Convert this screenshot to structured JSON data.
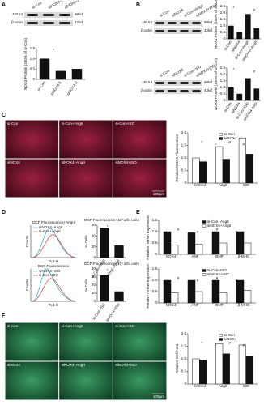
{
  "A": {
    "label": "A",
    "blot": {
      "lanes": [
        "si-Con",
        "siNOX4-1",
        "siNOX4-2"
      ],
      "bands": [
        "NOX4",
        "β-actin"
      ],
      "sizes": [
        "68kd",
        "42kd"
      ]
    },
    "chart": {
      "ylabel": "NOX4 Protein (100% of si-Con)",
      "categories": [
        "si-Con",
        "siNOX4-1",
        "siNOX4-2"
      ],
      "values": [
        1.0,
        0.4,
        0.5
      ],
      "color": "#111111",
      "ylim": [
        0,
        1.5
      ],
      "yticks": [
        0,
        0.5,
        {
          "value": 1,
          "label": "1.0"
        },
        1.5
      ],
      "annotations": [
        "*"
      ]
    }
  },
  "B": {
    "label": "B",
    "blot1": {
      "lanes": [
        "si-Con",
        "siNOX4",
        "si-Con+AngII",
        "siNOX4+AngII"
      ],
      "bands": [
        "NOX4",
        "β-actin"
      ],
      "sizes": [
        "68kd",
        "42kd"
      ]
    },
    "chart1": {
      "ylabel": "NOX4 Protein (100% of si-Con)",
      "categories": [
        "si-Con",
        "siNOX4",
        "si-Con+AngII",
        "siNOX4+AngII"
      ],
      "values": [
        1.0,
        0.5,
        1.9,
        0.8
      ],
      "color": "#111111",
      "ylim": [
        0,
        2.5
      ],
      "yticks": [
        0,
        0.5,
        {
          "value": 1,
          "label": "1.0"
        },
        1.5,
        {
          "value": 2,
          "label": "2.0"
        },
        2.5
      ],
      "annotations": [
        "*",
        "#"
      ]
    },
    "blot2": {
      "lanes": [
        "si-Con",
        "siNOX4",
        "si-Con+ISO",
        "siNOX4+ISO"
      ],
      "bands": [
        "NOX4",
        "β-actin"
      ],
      "sizes": [
        "68kd",
        "42kd"
      ]
    },
    "chart2": {
      "ylabel": "NOX4 Protein (100% of si-Con)",
      "categories": [
        "si-Con",
        "siNOX4",
        "si-Con+ISO",
        "siNOX4+ISO"
      ],
      "values": [
        1.0,
        0.5,
        1.7,
        0.9
      ],
      "color": "#111111",
      "ylim": [
        0,
        2.5
      ],
      "yticks": [
        0,
        0.5,
        {
          "value": 1,
          "label": "1.0"
        },
        1.5,
        {
          "value": 2,
          "label": "2.0"
        },
        2.5
      ],
      "annotations": [
        "*",
        "#"
      ]
    }
  },
  "C": {
    "label": "C",
    "images": [
      "si-Con",
      "si-Con+AngII",
      "si-Con+ISO",
      "siNOX4",
      "siNOX4+AngII",
      "siNOX4+ISO"
    ],
    "scale": "100μm",
    "chart": {
      "ylabel": "Relative NOX4 Fluorescence",
      "categories": [
        "Control",
        "AngII",
        "ISO"
      ],
      "series": [
        {
          "name": "si-Con",
          "color": "#ffffff",
          "values": [
            1.0,
            1.45,
            1.8
          ]
        },
        {
          "name": "siNOX4",
          "color": "#111111",
          "values": [
            0.85,
            0.95,
            1.15
          ]
        }
      ],
      "ylim": [
        0,
        2
      ],
      "yticks": [
        0,
        0.5,
        {
          "value": 1,
          "label": "1.0"
        },
        1.5,
        {
          "value": 2,
          "label": "2.0"
        }
      ],
      "annotations": [
        "*",
        "*",
        "#",
        "#"
      ]
    }
  },
  "D": {
    "label": "D",
    "hist1": {
      "title": "DCF Fluorescence+AngII",
      "legend": [
        "siNOX4+AngII",
        "si-Con+AngII"
      ],
      "ylabel": "Counts",
      "xlabel": "FL1-H"
    },
    "chart1": {
      "title": "DCF Fluorescence+10³ arb. units",
      "ylabel": "% Cells",
      "categories": [
        "si-Con+AngII",
        "siNOX4+AngII"
      ],
      "values": [
        55,
        22
      ],
      "color": "#111111",
      "ylim": [
        0,
        60
      ],
      "yticks": [
        0,
        20,
        40,
        60
      ],
      "annotations": [
        "*"
      ]
    },
    "hist2": {
      "title": "DCF Fluorescence",
      "legend": [
        "siNOX4+ISO",
        "si-Con+ISO"
      ],
      "ylabel": "Counts",
      "xlabel": "FL1-H"
    },
    "chart2": {
      "title": "DCF Fluorescence+10³ arb. units",
      "ylabel": "% Cells",
      "categories": [
        "si-Con+ISO",
        "siNOX4+ISO"
      ],
      "values": [
        32,
        12
      ],
      "color": "#111111",
      "ylim": [
        0,
        40
      ],
      "yticks": [
        0,
        10,
        20,
        30,
        40
      ],
      "annotations": [
        "*"
      ]
    }
  },
  "E": {
    "label": "E",
    "chart1": {
      "ylabel": "Relative mRNA Expression",
      "categories": [
        "NOX4",
        "ANF",
        "BNP",
        "β-MHC"
      ],
      "series": [
        {
          "name": "si-Con+AngII",
          "color": "#111111",
          "values": [
            1.0,
            0.95,
            1.0,
            1.0
          ]
        },
        {
          "name": "siNOX4+AngII",
          "color": "#ffffff",
          "values": [
            0.4,
            0.45,
            0.5,
            0.5
          ]
        }
      ],
      "ylim": [
        0,
        1.5
      ],
      "yticks": [
        0,
        0.5,
        {
          "value": 1,
          "label": "1.0"
        },
        1.5
      ],
      "annotations": [
        "#",
        "#",
        "#",
        "#"
      ]
    },
    "chart2": {
      "ylabel": "Relative mRNA Expression",
      "categories": [
        "NOX4",
        "ANF",
        "BNP",
        "β-MHC"
      ],
      "series": [
        {
          "name": "si-Con+ISO",
          "color": "#111111",
          "values": [
            1.0,
            1.0,
            1.0,
            1.0
          ]
        },
        {
          "name": "siNOX4+ISO",
          "color": "#ffffff",
          "values": [
            0.45,
            0.5,
            0.45,
            0.55
          ]
        }
      ],
      "ylim": [
        0,
        1.5
      ],
      "yticks": [
        0,
        0.5,
        {
          "value": 1,
          "label": "1.0"
        },
        1.5
      ],
      "annotations": [
        "#",
        "#",
        "#",
        "#"
      ]
    }
  },
  "F": {
    "label": "F",
    "images": [
      "si-Con",
      "si-Con+AngII",
      "si-Con+ISO",
      "siNOX4",
      "siNOX4+AngII",
      "siNOX4+ISO"
    ],
    "scale": "100μm",
    "chart": {
      "ylabel": "Relative Cell Area",
      "categories": [
        "Control",
        "AngII",
        "ISO"
      ],
      "series": [
        {
          "name": "si-Con",
          "color": "#ffffff",
          "values": [
            1.0,
            1.6,
            1.55
          ]
        },
        {
          "name": "siNOX4",
          "color": "#111111",
          "values": [
            0.95,
            1.2,
            1.1
          ]
        }
      ],
      "ylim": [
        0,
        2
      ],
      "yticks": [
        0,
        0.5,
        {
          "value": 1,
          "label": "1.0"
        },
        1.5,
        {
          "value": 2,
          "label": "2.0"
        }
      ],
      "annotations": [
        "*",
        "*",
        "#",
        "#"
      ]
    }
  }
}
